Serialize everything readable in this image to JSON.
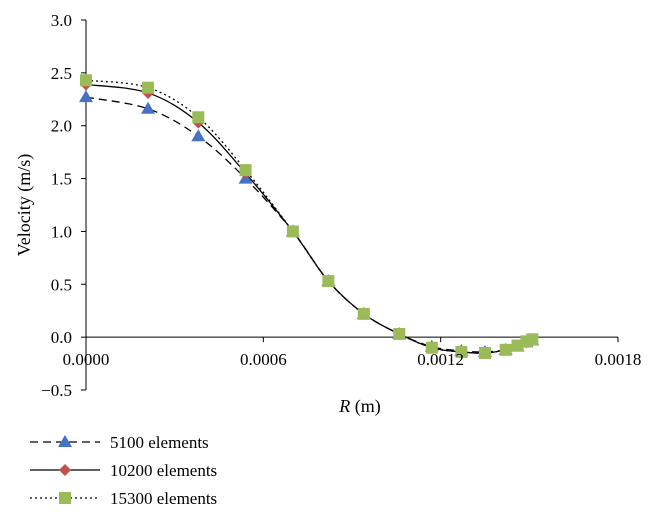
{
  "chart_data": {
    "type": "line",
    "xlabel_italic": "R",
    "xlabel_unit": " (m)",
    "ylabel": "Velocity (m/s)",
    "xlim": [
      0,
      0.0018
    ],
    "ylim": [
      -0.5,
      3.0
    ],
    "x_ticks": [
      "0.0000",
      "0.0006",
      "0.0012",
      "0.0018"
    ],
    "x_tick_values": [
      0,
      0.0006,
      0.0012,
      0.0018
    ],
    "y_ticks": [
      "3.0",
      "2.5",
      "2.0",
      "1.5",
      "1.0",
      "0.5",
      "0.0",
      "−0.5"
    ],
    "y_tick_values": [
      3.0,
      2.5,
      2.0,
      1.5,
      1.0,
      0.5,
      0.0,
      -0.5
    ],
    "grid": false,
    "legend_position": "bottom-left",
    "series": [
      {
        "name": "5100 elements",
        "marker": "triangle",
        "line": "dashed",
        "color": "#4472C4",
        "x": [
          0,
          0.00021,
          0.00038,
          0.00054,
          0.0007,
          0.00082,
          0.00094,
          0.00106,
          0.00117,
          0.00127,
          0.00135,
          0.00142,
          0.00146,
          0.00149,
          0.00151
        ],
        "y": [
          2.27,
          2.16,
          1.9,
          1.5,
          1.0,
          0.53,
          0.22,
          0.03,
          -0.09,
          -0.13,
          -0.14,
          -0.12,
          -0.09,
          -0.05,
          -0.03
        ]
      },
      {
        "name": "10200 elements",
        "marker": "diamond",
        "line": "solid",
        "color": "#C0504D",
        "x": [
          0,
          0.00021,
          0.00038,
          0.00054,
          0.0007,
          0.00082,
          0.00094,
          0.00106,
          0.00117,
          0.00127,
          0.00135,
          0.00142,
          0.00146,
          0.00149,
          0.00151
        ],
        "y": [
          2.39,
          2.31,
          2.03,
          1.55,
          1.0,
          0.53,
          0.22,
          0.03,
          -0.1,
          -0.14,
          -0.15,
          -0.12,
          -0.08,
          -0.05,
          -0.03
        ]
      },
      {
        "name": "15300 elements",
        "marker": "square",
        "line": "dotted",
        "color": "#9BBB59",
        "x": [
          0,
          0.00021,
          0.00038,
          0.00054,
          0.0007,
          0.00082,
          0.00094,
          0.00106,
          0.00117,
          0.00127,
          0.00135,
          0.00142,
          0.00146,
          0.00149,
          0.00151
        ],
        "y": [
          2.43,
          2.36,
          2.08,
          1.58,
          1.0,
          0.53,
          0.22,
          0.03,
          -0.1,
          -0.14,
          -0.15,
          -0.12,
          -0.08,
          -0.04,
          -0.02
        ]
      }
    ]
  }
}
